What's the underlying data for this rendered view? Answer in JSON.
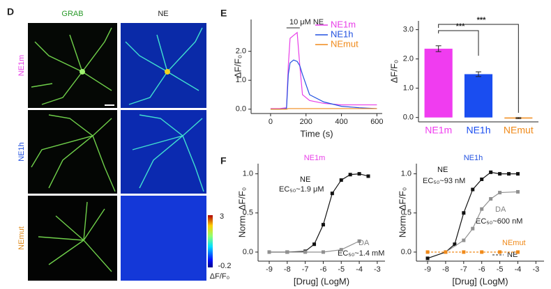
{
  "labels": {
    "d": "D",
    "e": "E",
    "f": "F"
  },
  "images": {
    "columns": [
      "GRAB",
      "NE"
    ],
    "rows": [
      "NE1m",
      "NE1h",
      "NEmut"
    ],
    "colorbar": {
      "max": 3,
      "min": -0.2,
      "label": "ΔF/F₀"
    }
  },
  "chart_data": [
    {
      "type": "line",
      "xlabel": "Time (s)",
      "ylabel": "ΔF/F₀",
      "annotations": [
        "10 μM NE"
      ],
      "x": [
        0,
        50,
        90,
        100,
        110,
        130,
        150,
        165,
        180,
        220,
        300,
        400,
        500,
        600
      ],
      "series": [
        {
          "name": "NE1m",
          "color": "#e83ee8",
          "values": [
            0.02,
            0.02,
            0.05,
            1.5,
            2.45,
            2.55,
            2.65,
            1.5,
            0.5,
            0.3,
            0.2,
            0.15,
            0.15,
            0.15
          ]
        },
        {
          "name": "NE1h",
          "color": "#2050e0",
          "values": [
            0,
            0,
            0.02,
            1.2,
            1.6,
            1.7,
            1.65,
            1.5,
            1.2,
            0.5,
            0.25,
            0.1,
            0.05,
            0.02
          ]
        },
        {
          "name": "NEmut",
          "color": "#f08a1a",
          "values": [
            0,
            0,
            0,
            0.02,
            0.02,
            0.02,
            0.02,
            0.02,
            0.02,
            0.02,
            0.02,
            0.02,
            0.02,
            0.02
          ]
        }
      ],
      "xlim": [
        -110,
        630
      ],
      "ylim": [
        -0.15,
        3.1
      ],
      "xticks": [
        0,
        200,
        400,
        600
      ],
      "yticks": [
        {
          "value": 0,
          "label": "0.0"
        },
        {
          "value": 1,
          "label": "1.0"
        },
        {
          "value": 2,
          "label": "2.0"
        }
      ]
    },
    {
      "type": "bar",
      "ylabel": "ΔF/F₀",
      "categories": [
        "NE1m",
        "NE1h",
        "NEmut"
      ],
      "values": [
        2.35,
        1.48,
        -0.02
      ],
      "errors": [
        0.1,
        0.08,
        0.02
      ],
      "colors": [
        "#f03cf0",
        "#1a4df0",
        "#f08a1a"
      ],
      "annotations": [
        "***",
        "***"
      ],
      "ylim": [
        -0.15,
        3.3
      ],
      "yticks": [
        {
          "value": 0,
          "label": "0.0"
        },
        {
          "value": 1,
          "label": "1.0"
        },
        {
          "value": 2,
          "label": "2.0"
        },
        {
          "value": 3,
          "label": "3.0"
        }
      ]
    },
    {
      "type": "scatter",
      "title": "NE1m",
      "title_color": "#e83ee8",
      "xlabel": "[Drug] (LogM)",
      "ylabel": "Norm. ΔF/F₀",
      "annotations": [
        "EC₅₀~1.9 μM",
        "EC₅₀~1.4 mM"
      ],
      "series": [
        {
          "name": "NE",
          "color": "#111111",
          "x": [
            -9,
            -8,
            -7,
            -6.5,
            -6,
            -5.5,
            -5,
            -4.5,
            -4,
            -3.5
          ],
          "values": [
            0,
            0,
            0.01,
            0.1,
            0.35,
            0.75,
            0.92,
            0.99,
            1.0,
            0.97
          ]
        },
        {
          "name": "DA",
          "color": "#909090",
          "x": [
            -9,
            -8,
            -7,
            -6,
            -5,
            -4
          ],
          "values": [
            0,
            0,
            0,
            0,
            0.03,
            0.14
          ]
        }
      ],
      "xlim": [
        -9.62,
        -2.57
      ],
      "ylim": [
        -0.116,
        1.13
      ],
      "xticks": [
        -9,
        -8,
        -7,
        -6,
        -5,
        -4,
        -3
      ],
      "yticks": [
        {
          "value": 0,
          "label": "0.0"
        },
        {
          "value": 0.5,
          "label": "0.5"
        },
        {
          "value": 1,
          "label": "1.0"
        }
      ]
    },
    {
      "type": "scatter",
      "title": "NE1h",
      "title_color": "#2050e0",
      "xlabel": "[Drug] (LogM)",
      "ylabel": "Norm. ΔF/F₀",
      "annotations": [
        "EC₅₀~93 nM",
        "EC₅₀~600 nM",
        "NE"
      ],
      "series": [
        {
          "name": "NE",
          "color": "#111111",
          "x": [
            -9,
            -8,
            -7.5,
            -7,
            -6.5,
            -6,
            -5.5,
            -5,
            -4.5,
            -4
          ],
          "values": [
            -0.08,
            0,
            0.1,
            0.5,
            0.8,
            0.93,
            1.02,
            1.0,
            1.0,
            1.0
          ]
        },
        {
          "name": "DA",
          "color": "#909090",
          "x": [
            -8,
            -7,
            -6.5,
            -6,
            -5.5,
            -5,
            -4
          ],
          "values": [
            0,
            0.15,
            0.3,
            0.55,
            0.68,
            0.76,
            0.77
          ]
        },
        {
          "name": "NEmut",
          "color": "#f08a1a",
          "dashed": true,
          "x": [
            -9,
            -8,
            -7,
            -6,
            -5,
            -4
          ],
          "values": [
            0,
            0,
            0,
            0,
            0,
            0
          ]
        }
      ],
      "xlim": [
        -9.62,
        -2.55
      ],
      "ylim": [
        -0.116,
        1.13
      ],
      "xticks": [
        -9,
        -8,
        -7,
        -6,
        -5,
        -4,
        -3
      ],
      "yticks": [
        {
          "value": 0,
          "label": "0.0"
        },
        {
          "value": 0.5,
          "label": "0.5"
        },
        {
          "value": 1,
          "label": "1.0"
        }
      ]
    }
  ]
}
